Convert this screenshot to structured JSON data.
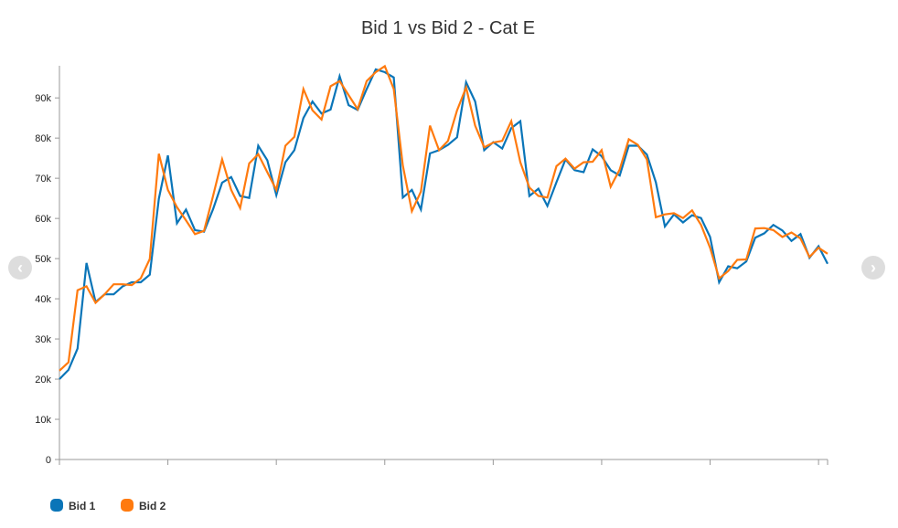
{
  "chart_data": {
    "type": "line",
    "title": "Bid 1 vs Bid 2 - Cat E",
    "xlabel": "",
    "ylabel": "",
    "ylim": [
      0,
      98000
    ],
    "xlim": [
      0,
      85
    ],
    "yticks": [
      0,
      10000,
      20000,
      30000,
      40000,
      50000,
      60000,
      70000,
      80000,
      90000
    ],
    "ytick_labels": [
      "0",
      "10k",
      "20k",
      "30k",
      "40k",
      "50k",
      "60k",
      "70k",
      "80k",
      "90k"
    ],
    "xticks": [
      0,
      12,
      24,
      36,
      48,
      60,
      72,
      84
    ],
    "grid": false,
    "legend_position": "bottom-left",
    "series": [
      {
        "name": "Bid 1",
        "color": "#0A75B8",
        "values": [
          20000,
          22300,
          27600,
          48900,
          39200,
          41100,
          41100,
          43100,
          44100,
          44100,
          46000,
          64900,
          75700,
          58800,
          62200,
          57100,
          56700,
          62300,
          68900,
          70300,
          65600,
          65100,
          78100,
          74500,
          65800,
          74000,
          77000,
          85000,
          89100,
          86100,
          87100,
          95400,
          88200,
          87000,
          92200,
          97100,
          96400,
          95100,
          65200,
          67100,
          62200,
          76200,
          77000,
          78300,
          80200,
          93900,
          89100,
          77000,
          79000,
          77400,
          82500,
          84200,
          65600,
          67400,
          63100,
          69000,
          74700,
          72000,
          71500,
          77200,
          75500,
          72000,
          70700,
          78100,
          78100,
          75900,
          69000,
          58000,
          61000,
          59000,
          60800,
          60100,
          55400,
          44100,
          48100,
          47600,
          49300,
          55200,
          56300,
          58400,
          57000,
          54400,
          56100,
          50200,
          53100,
          48700
        ]
      },
      {
        "name": "Bid 2",
        "color": "#FF7A0E",
        "values": [
          22100,
          24200,
          42100,
          43100,
          39000,
          41100,
          43600,
          43600,
          43400,
          45100,
          49900,
          76100,
          67100,
          62800,
          59500,
          56100,
          56900,
          65600,
          74700,
          67100,
          62600,
          73700,
          76000,
          71500,
          67100,
          78100,
          80300,
          92200,
          86900,
          84600,
          92900,
          94200,
          90700,
          87200,
          94200,
          96400,
          97900,
          92200,
          73200,
          61800,
          66700,
          83100,
          77000,
          79300,
          86900,
          92600,
          83100,
          77700,
          78900,
          79300,
          84200,
          74000,
          67700,
          65600,
          65200,
          73000,
          74900,
          72400,
          74000,
          74100,
          77000,
          67900,
          72200,
          79700,
          78300,
          74700,
          60300,
          61000,
          61300,
          60100,
          62000,
          58400,
          52700,
          45100,
          46900,
          49700,
          49800,
          57500,
          57600,
          57100,
          55400,
          56500,
          55000,
          50400,
          52700,
          51200
        ]
      }
    ]
  },
  "nav": {
    "prev": "‹",
    "next": "›"
  }
}
